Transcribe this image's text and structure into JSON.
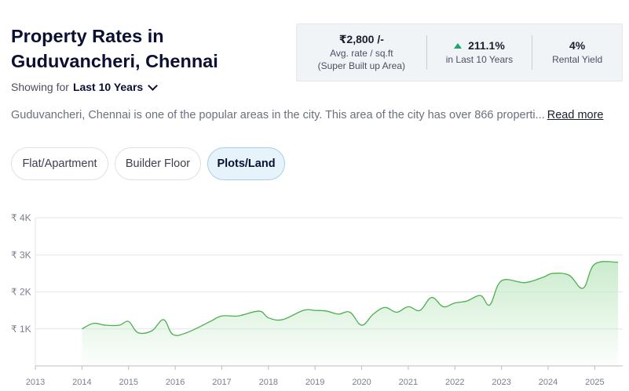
{
  "header": {
    "title": "Property Rates in Guduvancheri, Chennai",
    "showing_label": "Showing for",
    "showing_value": "Last 10 Years"
  },
  "stats": {
    "rate_value": "₹2,800 /-",
    "rate_label": "Avg. rate / sq.ft",
    "rate_sublabel": "(Super Built up Area)",
    "growth_value": "211.1%",
    "growth_label": "in Last 10 Years",
    "yield_value": "4%",
    "yield_label": "Rental Yield"
  },
  "description": {
    "text": "Guduvancheri, Chennai is one of the popular areas in the city. This area of the city has over 866 properti...",
    "read_more": "Read more"
  },
  "tabs": [
    {
      "label": "Flat/Apartment",
      "active": false
    },
    {
      "label": "Builder Floor",
      "active": false
    },
    {
      "label": "Plots/Land",
      "active": true
    }
  ],
  "colors": {
    "line": "#4caf50",
    "fill": "#d9f1da",
    "growth_arrow": "#21a36a",
    "active_tab": "#e6f3fb"
  },
  "chart_data": {
    "type": "area",
    "title": "",
    "xlabel": "",
    "ylabel": "",
    "x_ticks": [
      "2013",
      "2014",
      "2015",
      "2016",
      "2017",
      "2018",
      "2019",
      "2020",
      "2021",
      "2022",
      "2023",
      "2024",
      "2025"
    ],
    "y_ticks": [
      "₹ 1K",
      "₹ 2K",
      "₹ 3K",
      "₹ 4K"
    ],
    "xlim": [
      2013,
      2025.6
    ],
    "ylim": [
      0,
      4000
    ],
    "grid": true,
    "series": [
      {
        "x": [
          2014.0,
          2014.25,
          2014.5,
          2014.8,
          2015.0,
          2015.2,
          2015.5,
          2015.75,
          2015.95,
          2016.25,
          2016.75,
          2017.0,
          2017.35,
          2017.8,
          2018.0,
          2018.3,
          2018.75,
          2019.0,
          2019.25,
          2019.5,
          2019.75,
          2020.0,
          2020.25,
          2020.5,
          2020.75,
          2021.0,
          2021.25,
          2021.5,
          2021.75,
          2022.0,
          2022.25,
          2022.55,
          2022.75,
          2023.0,
          2023.5,
          2023.9,
          2024.1,
          2024.45,
          2024.75,
          2025.0,
          2025.5
        ],
        "y": [
          1000,
          1150,
          1100,
          1100,
          1200,
          900,
          950,
          1250,
          850,
          900,
          1200,
          1350,
          1350,
          1480,
          1300,
          1250,
          1500,
          1500,
          1480,
          1400,
          1450,
          1100,
          1400,
          1580,
          1450,
          1600,
          1500,
          1850,
          1600,
          1700,
          1750,
          1900,
          1650,
          2300,
          2250,
          2400,
          2500,
          2450,
          2100,
          2750,
          2800
        ]
      }
    ]
  }
}
